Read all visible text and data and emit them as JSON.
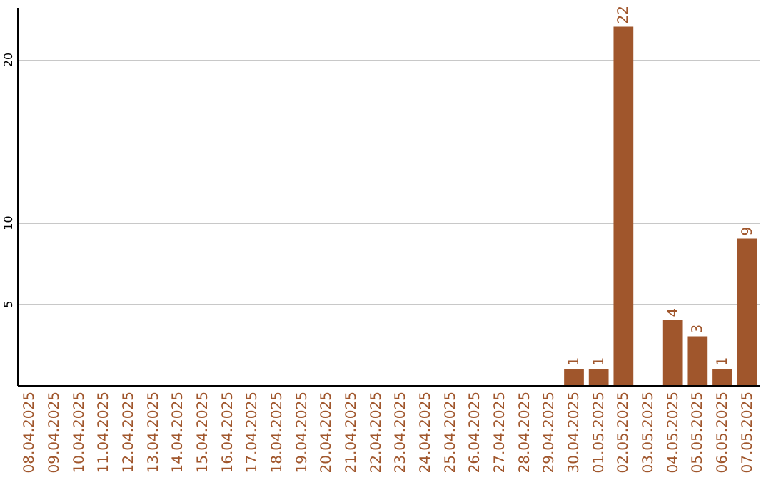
{
  "chart_data": {
    "type": "bar",
    "categories": [
      "08.04.2025",
      "09.04.2025",
      "10.04.2025",
      "11.04.2025",
      "12.04.2025",
      "13.04.2025",
      "14.04.2025",
      "15.04.2025",
      "16.04.2025",
      "17.04.2025",
      "18.04.2025",
      "19.04.2025",
      "20.04.2025",
      "21.04.2025",
      "22.04.2025",
      "23.04.2025",
      "24.04.2025",
      "25.04.2025",
      "26.04.2025",
      "27.04.2025",
      "28.04.2025",
      "29.04.2025",
      "30.04.2025",
      "01.05.2025",
      "02.05.2025",
      "03.05.2025",
      "04.05.2025",
      "05.05.2025",
      "06.05.2025",
      "07.05.2025"
    ],
    "values": [
      0,
      0,
      0,
      0,
      0,
      0,
      0,
      0,
      0,
      0,
      0,
      0,
      0,
      0,
      0,
      0,
      0,
      0,
      0,
      0,
      0,
      0,
      1,
      1,
      22,
      0,
      4,
      3,
      1,
      9
    ],
    "value_labels": [
      null,
      null,
      null,
      null,
      null,
      null,
      null,
      null,
      null,
      null,
      null,
      null,
      null,
      null,
      null,
      null,
      null,
      null,
      null,
      null,
      null,
      null,
      "1",
      "1",
      "22",
      null,
      "4",
      "3",
      "1",
      "9"
    ],
    "color": "#a0562c",
    "ylim": [
      0,
      23.2
    ],
    "yticks": [
      5,
      10,
      20
    ],
    "grid": "y"
  }
}
